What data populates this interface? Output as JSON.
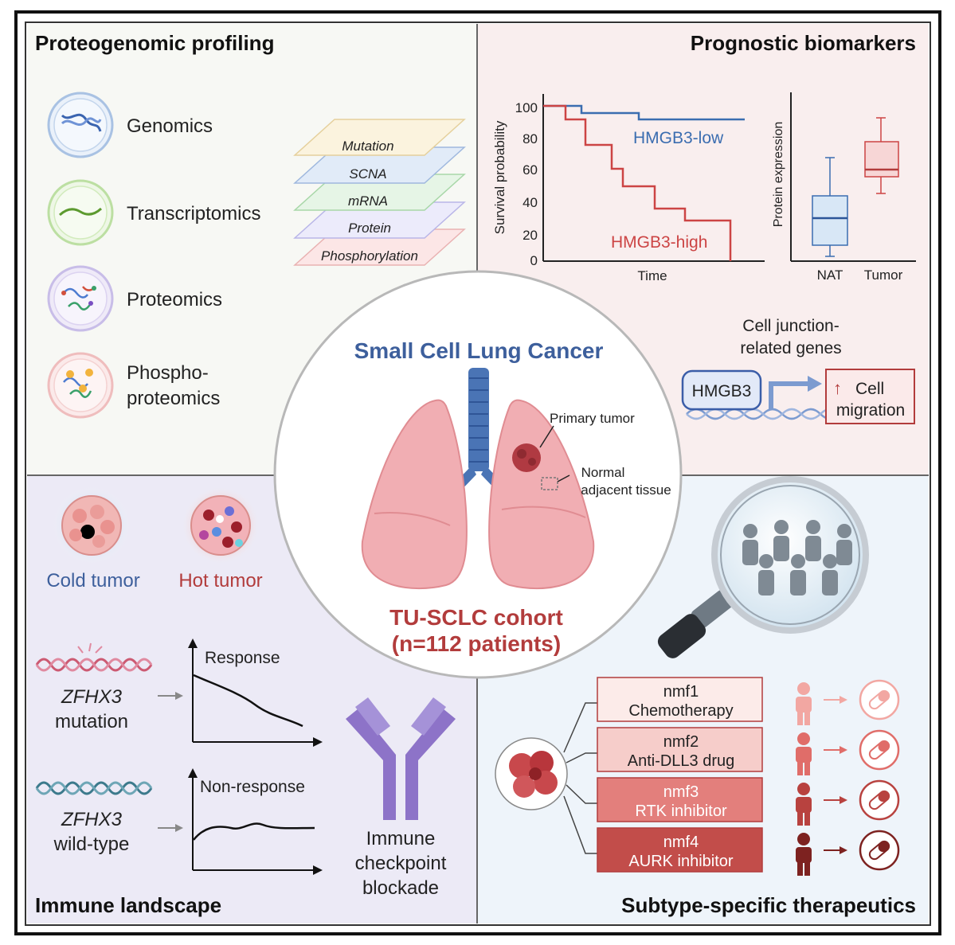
{
  "panels": {
    "proteogenomic": {
      "title": "Proteogenomic profiling",
      "omics": [
        {
          "label": "Genomics",
          "icon": "dna-icon"
        },
        {
          "label": "Transcriptomics",
          "icon": "rna-icon"
        },
        {
          "label": "Proteomics",
          "icon": "protein-icon"
        },
        {
          "label_line1": "Phospho-",
          "label_line2": "proteomics",
          "icon": "phosphoprotein-icon"
        }
      ],
      "layers": [
        "Mutation",
        "SCNA",
        "mRNA",
        "Protein",
        "Phosphorylation"
      ]
    },
    "prognostic": {
      "title": "Prognostic biomarkers",
      "km": {
        "ylabel": "Survival probability",
        "xlabel": "Time",
        "yticks": [
          "100",
          "80",
          "60",
          "40",
          "20",
          "0"
        ],
        "low_label": "HMGB3-low",
        "high_label": "HMGB3-high"
      },
      "box": {
        "ylabel": "Protein expression",
        "categories": [
          "NAT",
          "Tumor"
        ]
      },
      "mechanism": {
        "genes_line1": "Cell junction-",
        "genes_line2": "related genes",
        "gene": "HMGB3",
        "arrow": "↑",
        "effect_line1": "Cell",
        "effect_line2": "migration"
      }
    },
    "immune": {
      "title": "Immune landscape",
      "cold": "Cold tumor",
      "hot": "Hot tumor",
      "gene": "ZFHX3",
      "mutation": "mutation",
      "wildtype": "wild-type",
      "response": "Response",
      "nonresponse": "Non-response",
      "icb_line1": "Immune",
      "icb_line2": "checkpoint",
      "icb_line3": "blockade"
    },
    "therapeutics": {
      "title": "Subtype-specific therapeutics",
      "subtypes": [
        {
          "name": "nmf1",
          "drug": "Chemotherapy",
          "color": "#fcebe9",
          "person": "#f2a7a2"
        },
        {
          "name": "nmf2",
          "drug": "Anti-DLL3 drug",
          "color": "#f6cdca",
          "person": "#e06d69"
        },
        {
          "name": "nmf3",
          "drug": "RTK inhibitor",
          "color": "#e37f7c",
          "person": "#b8423f"
        },
        {
          "name": "nmf4",
          "drug": "AURK inhibitor",
          "color": "#c24d4a",
          "person": "#7d2220"
        }
      ]
    }
  },
  "center": {
    "title": "Small Cell Lung Cancer",
    "primary": "Primary tumor",
    "normal_line1": "Normal",
    "normal_line2": "adjacent tissue",
    "cohort_line1": "TU-SCLC cohort",
    "cohort_line2": "(n=112 patients)"
  },
  "colors": {
    "blue": "#3d5f9c",
    "red": "#b23c3c",
    "km_low": "#3b6db0",
    "km_high": "#cc4444"
  }
}
